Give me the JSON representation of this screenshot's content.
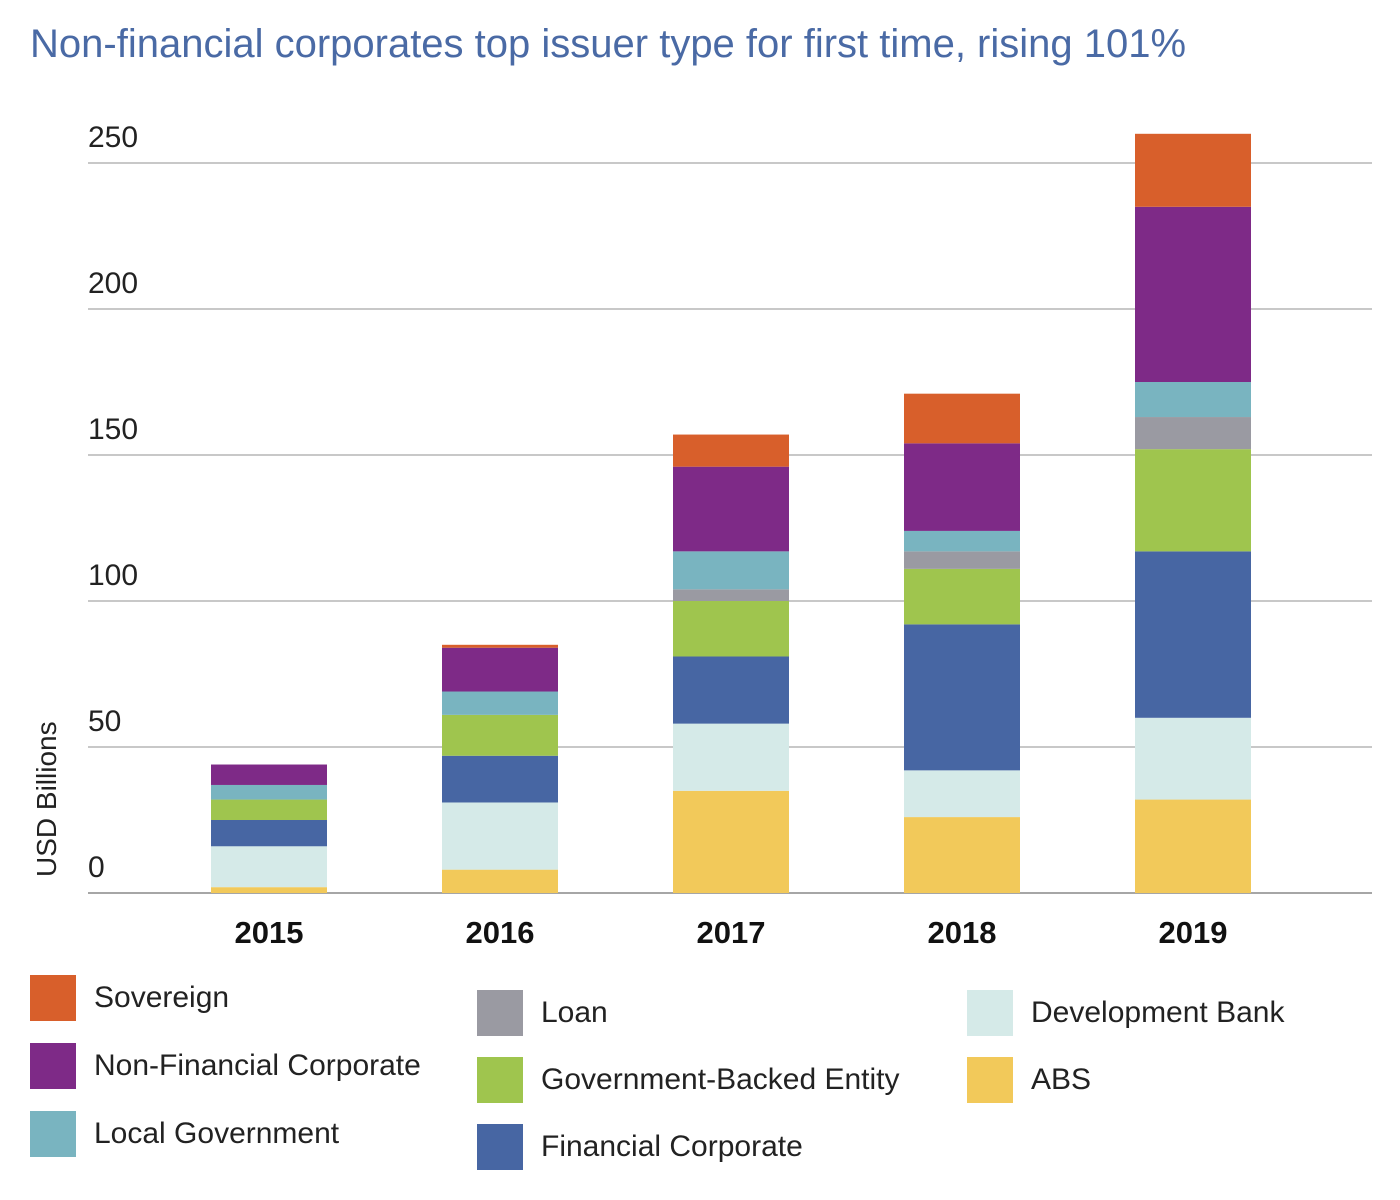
{
  "chart_data": {
    "type": "bar",
    "stacked": true,
    "title": "Non-financial corporates top issuer type for first time, rising 101%",
    "xlabel": "",
    "ylabel": "USD Billions",
    "ylim": [
      0,
      260
    ],
    "yticks": [
      0,
      50,
      100,
      150,
      200,
      250
    ],
    "grid": true,
    "legend_position": "bottom",
    "categories": [
      "2015",
      "2016",
      "2017",
      "2018",
      "2019"
    ],
    "series": [
      {
        "name": "ABS",
        "color": "#f2c95a",
        "values": [
          2,
          8,
          35,
          26,
          32
        ]
      },
      {
        "name": "Development Bank",
        "color": "#d5eae8",
        "values": [
          14,
          23,
          23,
          16,
          28
        ]
      },
      {
        "name": "Financial Corporate",
        "color": "#4766a3",
        "values": [
          9,
          16,
          23,
          50,
          57
        ]
      },
      {
        "name": "Government-Backed Entity",
        "color": "#9fc54e",
        "values": [
          7,
          14,
          19,
          19,
          35
        ]
      },
      {
        "name": "Loan",
        "color": "#9a9aa2",
        "values": [
          0,
          0,
          4,
          6,
          11
        ]
      },
      {
        "name": "Local Government",
        "color": "#79b4c0",
        "values": [
          5,
          8,
          13,
          7,
          12
        ]
      },
      {
        "name": "Non-Financial Corporate",
        "color": "#7e2a87",
        "values": [
          7,
          15,
          29,
          30,
          60
        ]
      },
      {
        "name": "Sovereign",
        "color": "#d85f2b",
        "values": [
          0,
          1,
          11,
          17,
          25
        ]
      }
    ]
  },
  "legend": {
    "items": [
      {
        "label": "Sovereign",
        "color": "#d85f2b"
      },
      {
        "label": "Non-Financial Corporate",
        "color": "#7e2a87"
      },
      {
        "label": "Local Government",
        "color": "#79b4c0"
      },
      {
        "label": "Loan",
        "color": "#9a9aa2"
      },
      {
        "label": "Government-Backed Entity",
        "color": "#9fc54e"
      },
      {
        "label": "Financial Corporate",
        "color": "#4766a3"
      },
      {
        "label": "Development Bank",
        "color": "#d5eae8"
      },
      {
        "label": "ABS",
        "color": "#f2c95a"
      }
    ]
  }
}
